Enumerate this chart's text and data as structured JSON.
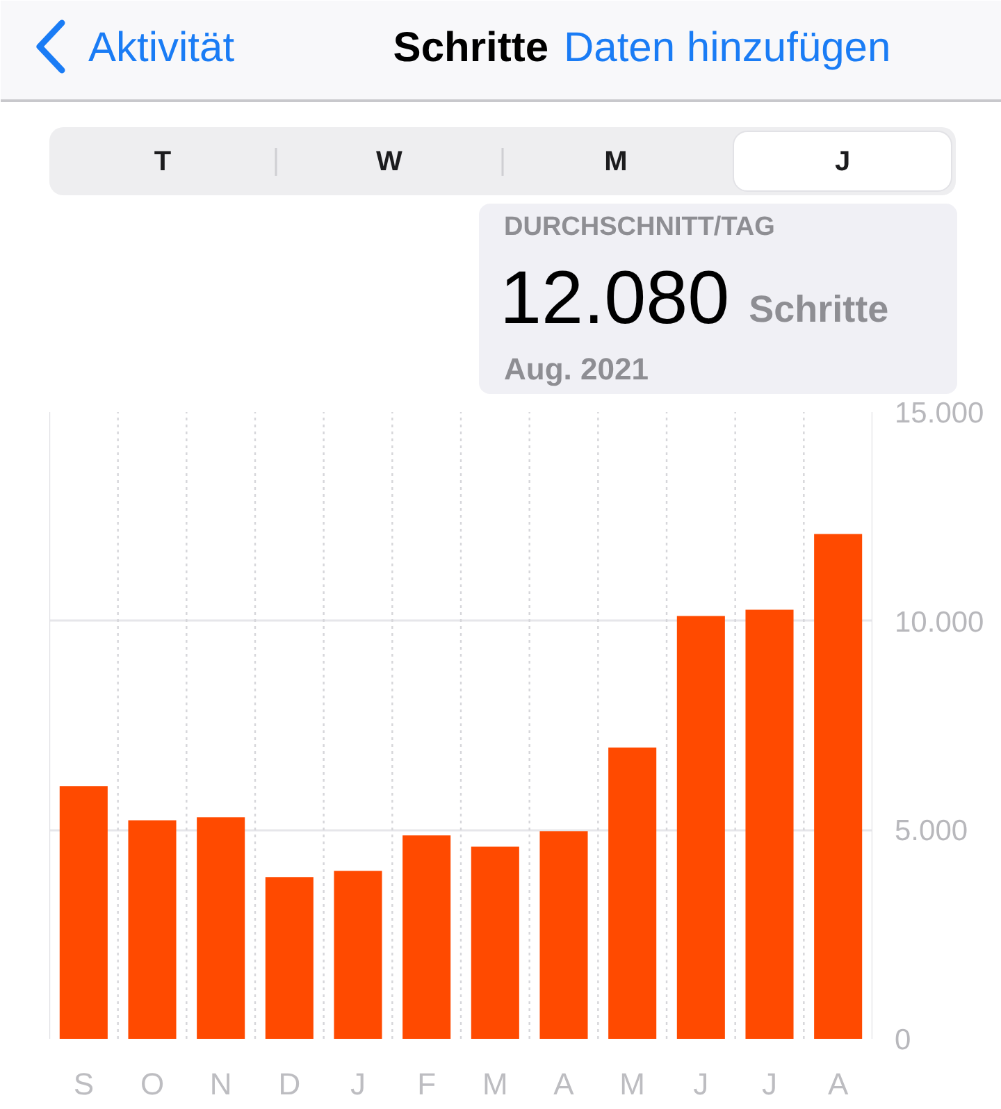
{
  "chart_data": {
    "type": "bar",
    "title": "Schritte",
    "categories": [
      "S",
      "O",
      "N",
      "D",
      "J",
      "F",
      "M",
      "A",
      "M",
      "J",
      "J",
      "A"
    ],
    "values": [
      6050,
      5230,
      5300,
      3870,
      4020,
      4870,
      4600,
      4970,
      6970,
      10120,
      10270,
      12080
    ],
    "color": "#ff4a00",
    "ylim": [
      0,
      15000
    ],
    "yticks": [
      0,
      {
        "value": 5000,
        "label": "5.000"
      },
      {
        "value": 10000,
        "label": "10.000"
      },
      {
        "value": 15000,
        "label": "15.000"
      }
    ],
    "grid": true,
    "annotations": [
      "Aktivität",
      "Daten hinzufügen",
      "T",
      "W",
      "M",
      "J",
      "DURCHSCHNITT/TAG",
      "12.080",
      "Schritte",
      "Aug. 2021"
    ]
  }
}
